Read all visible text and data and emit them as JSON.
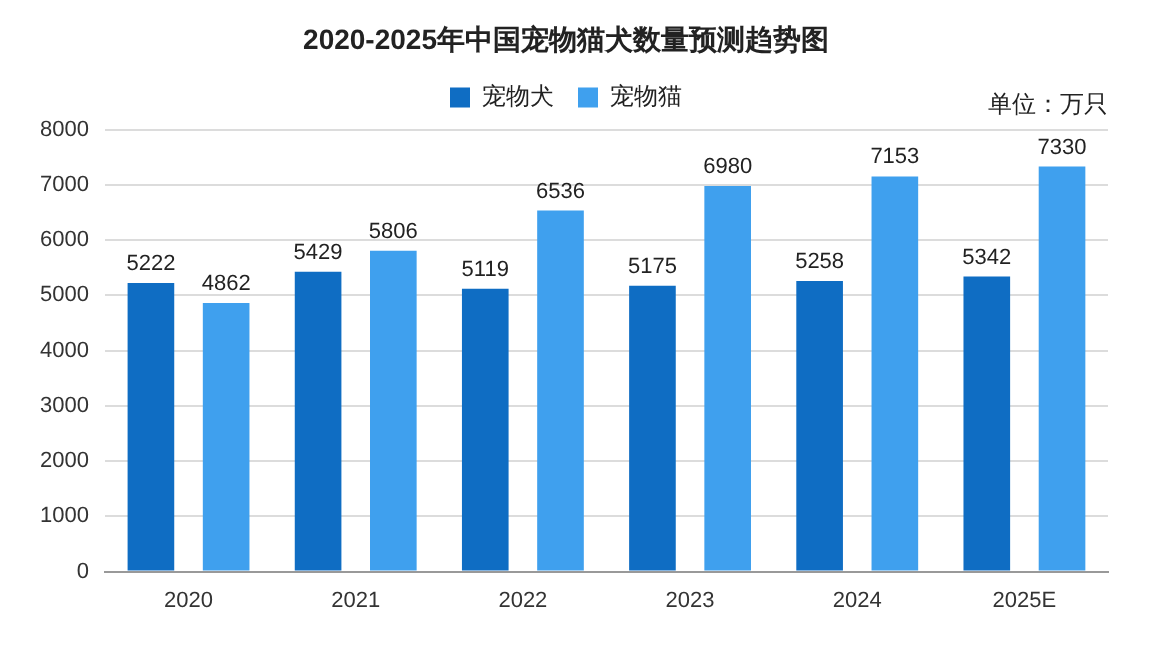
{
  "chart_data": {
    "type": "bar",
    "title": "2020-2025年中国宠物猫犬数量预测趋势图",
    "categories": [
      "2020",
      "2021",
      "2022",
      "2023",
      "2024",
      "2025E"
    ],
    "series": [
      {
        "name": "宠物犬",
        "color": "#0f6dc3",
        "values": [
          5222,
          5429,
          5119,
          5175,
          5258,
          5342
        ]
      },
      {
        "name": "宠物猫",
        "color": "#3fa0ee",
        "values": [
          4862,
          5806,
          6536,
          6980,
          7153,
          7330
        ]
      }
    ],
    "ylim": [
      0,
      8000
    ],
    "yticks": [
      0,
      1000,
      2000,
      3000,
      4000,
      5000,
      6000,
      7000,
      8000
    ],
    "grid": "y",
    "legend": "top",
    "data_labels": true,
    "annotations": [
      "单位：万只"
    ]
  }
}
